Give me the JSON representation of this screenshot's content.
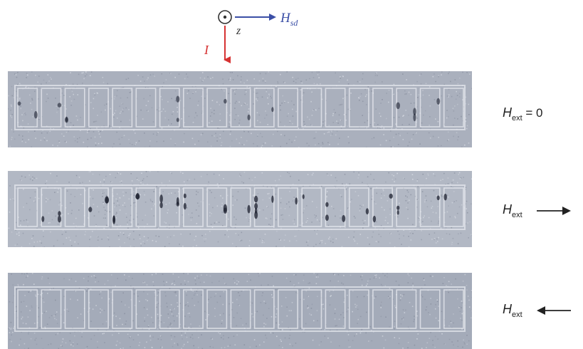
{
  "axes": {
    "z_label": "z",
    "hsd_symbol": "H",
    "hsd_subscript": "sd",
    "current_label": "I",
    "colors": {
      "hsd": "#3b4fa6",
      "current": "#d63232",
      "z": "#333333"
    }
  },
  "panels": [
    {
      "field_symbol": "H",
      "field_subscript": "ext",
      "field_suffix": " = 0",
      "field_direction": "none",
      "domain_wall_contrast": "weak"
    },
    {
      "field_symbol": "H",
      "field_subscript": "ext",
      "field_suffix": "",
      "field_direction": "right-arrow",
      "domain_wall_contrast": "strong"
    },
    {
      "field_symbol": "H",
      "field_subscript": "ext",
      "field_suffix": "",
      "field_direction": "left-arrow",
      "domain_wall_contrast": "none"
    }
  ]
}
